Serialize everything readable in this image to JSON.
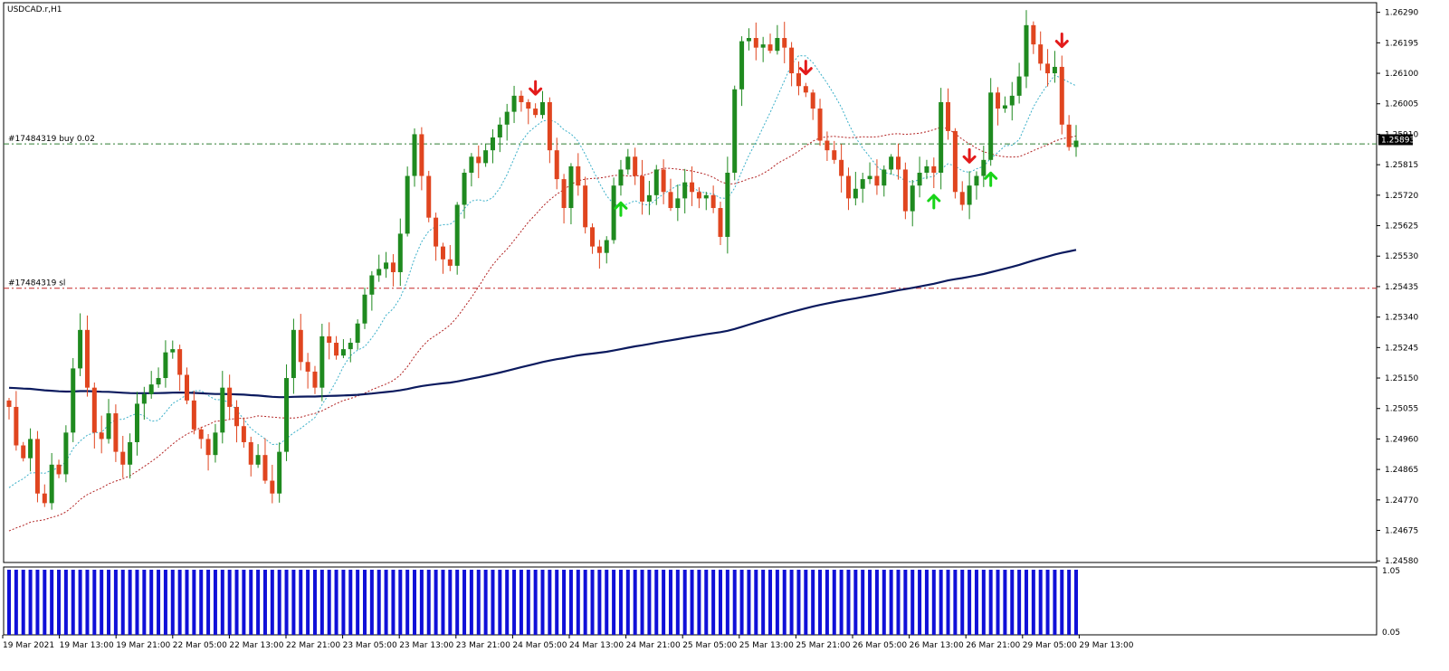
{
  "chart_data": {
    "type": "candlestick",
    "symbol_title": "USDCAD.r,H1",
    "price_ticks": [
      "1.26290",
      "1.26195",
      "1.26100",
      "1.26005",
      "1.25910",
      "1.25815",
      "1.25720",
      "1.25625",
      "1.25530",
      "1.25435",
      "1.25340",
      "1.25245",
      "1.25150",
      "1.25055",
      "1.24960",
      "1.24865",
      "1.24770",
      "1.24675",
      "1.24580"
    ],
    "price_range": [
      1.24575,
      1.2632
    ],
    "current_price": "1.25893",
    "order_line": {
      "label": "#17484319 buy 0.02",
      "price": 1.2588,
      "color": "#2e7d32"
    },
    "sl_line": {
      "label": "#17484319 sl",
      "price": 1.2543,
      "color": "#c62828"
    },
    "time_labels": [
      "19 Mar 2021",
      "19 Mar 13:00",
      "19 Mar 21:00",
      "22 Mar 05:00",
      "22 Mar 13:00",
      "22 Mar 21:00",
      "23 Mar 05:00",
      "23 Mar 13:00",
      "23 Mar 21:00",
      "24 Mar 05:00",
      "24 Mar 13:00",
      "24 Mar 21:00",
      "25 Mar 05:00",
      "25 Mar 13:00",
      "25 Mar 21:00",
      "26 Mar 05:00",
      "26 Mar 13:00",
      "26 Mar 21:00",
      "29 Mar 05:00",
      "29 Mar 13:00"
    ],
    "closes": [
      1.2506,
      1.2494,
      1.249,
      1.2496,
      1.2479,
      1.2476,
      1.2488,
      1.2485,
      1.2498,
      1.2518,
      1.253,
      1.2512,
      1.2498,
      1.2496,
      1.2504,
      1.2492,
      1.2488,
      1.2495,
      1.2507,
      1.251,
      1.2513,
      1.2515,
      1.2523,
      1.2524,
      1.2516,
      1.2508,
      1.2499,
      1.2496,
      1.2491,
      1.2498,
      1.2512,
      1.2506,
      1.25,
      1.2495,
      1.2488,
      1.2491,
      1.2483,
      1.2479,
      1.2492,
      1.2515,
      1.253,
      1.252,
      1.2517,
      1.2512,
      1.2528,
      1.2526,
      1.2522,
      1.2524,
      1.2526,
      1.2532,
      1.2541,
      1.2547,
      1.2549,
      1.2551,
      1.2548,
      1.256,
      1.2578,
      1.2591,
      1.2578,
      1.2565,
      1.2556,
      1.2552,
      1.255,
      1.2569,
      1.2579,
      1.2584,
      1.2582,
      1.2586,
      1.259,
      1.2594,
      1.2598,
      1.2603,
      1.2601,
      1.2599,
      1.2597,
      1.2601,
      1.2586,
      1.2577,
      1.2568,
      1.2581,
      1.2575,
      1.2562,
      1.2556,
      1.2554,
      1.2558,
      1.2575,
      1.258,
      1.2584,
      1.2578,
      1.257,
      1.2572,
      1.258,
      1.2573,
      1.2568,
      1.2571,
      1.2576,
      1.2573,
      1.2571,
      1.2572,
      1.2568,
      1.2559,
      1.2579,
      1.2605,
      1.262,
      1.2621,
      1.2618,
      1.2619,
      1.2617,
      1.2621,
      1.2618,
      1.261,
      1.2606,
      1.2604,
      1.2599,
      1.2589,
      1.2586,
      1.2583,
      1.2578,
      1.2571,
      1.2574,
      1.2577,
      1.2578,
      1.2575,
      1.258,
      1.2584,
      1.258,
      1.2567,
      1.2575,
      1.2579,
      1.2581,
      1.2579,
      1.2601,
      1.2592,
      1.2573,
      1.2569,
      1.2575,
      1.2578,
      1.2583,
      1.2604,
      1.2599,
      1.26,
      1.2603,
      1.2609,
      1.2625,
      1.2619,
      1.2613,
      1.261,
      1.2612,
      1.2594,
      1.2587,
      1.2589
    ]
  }
}
